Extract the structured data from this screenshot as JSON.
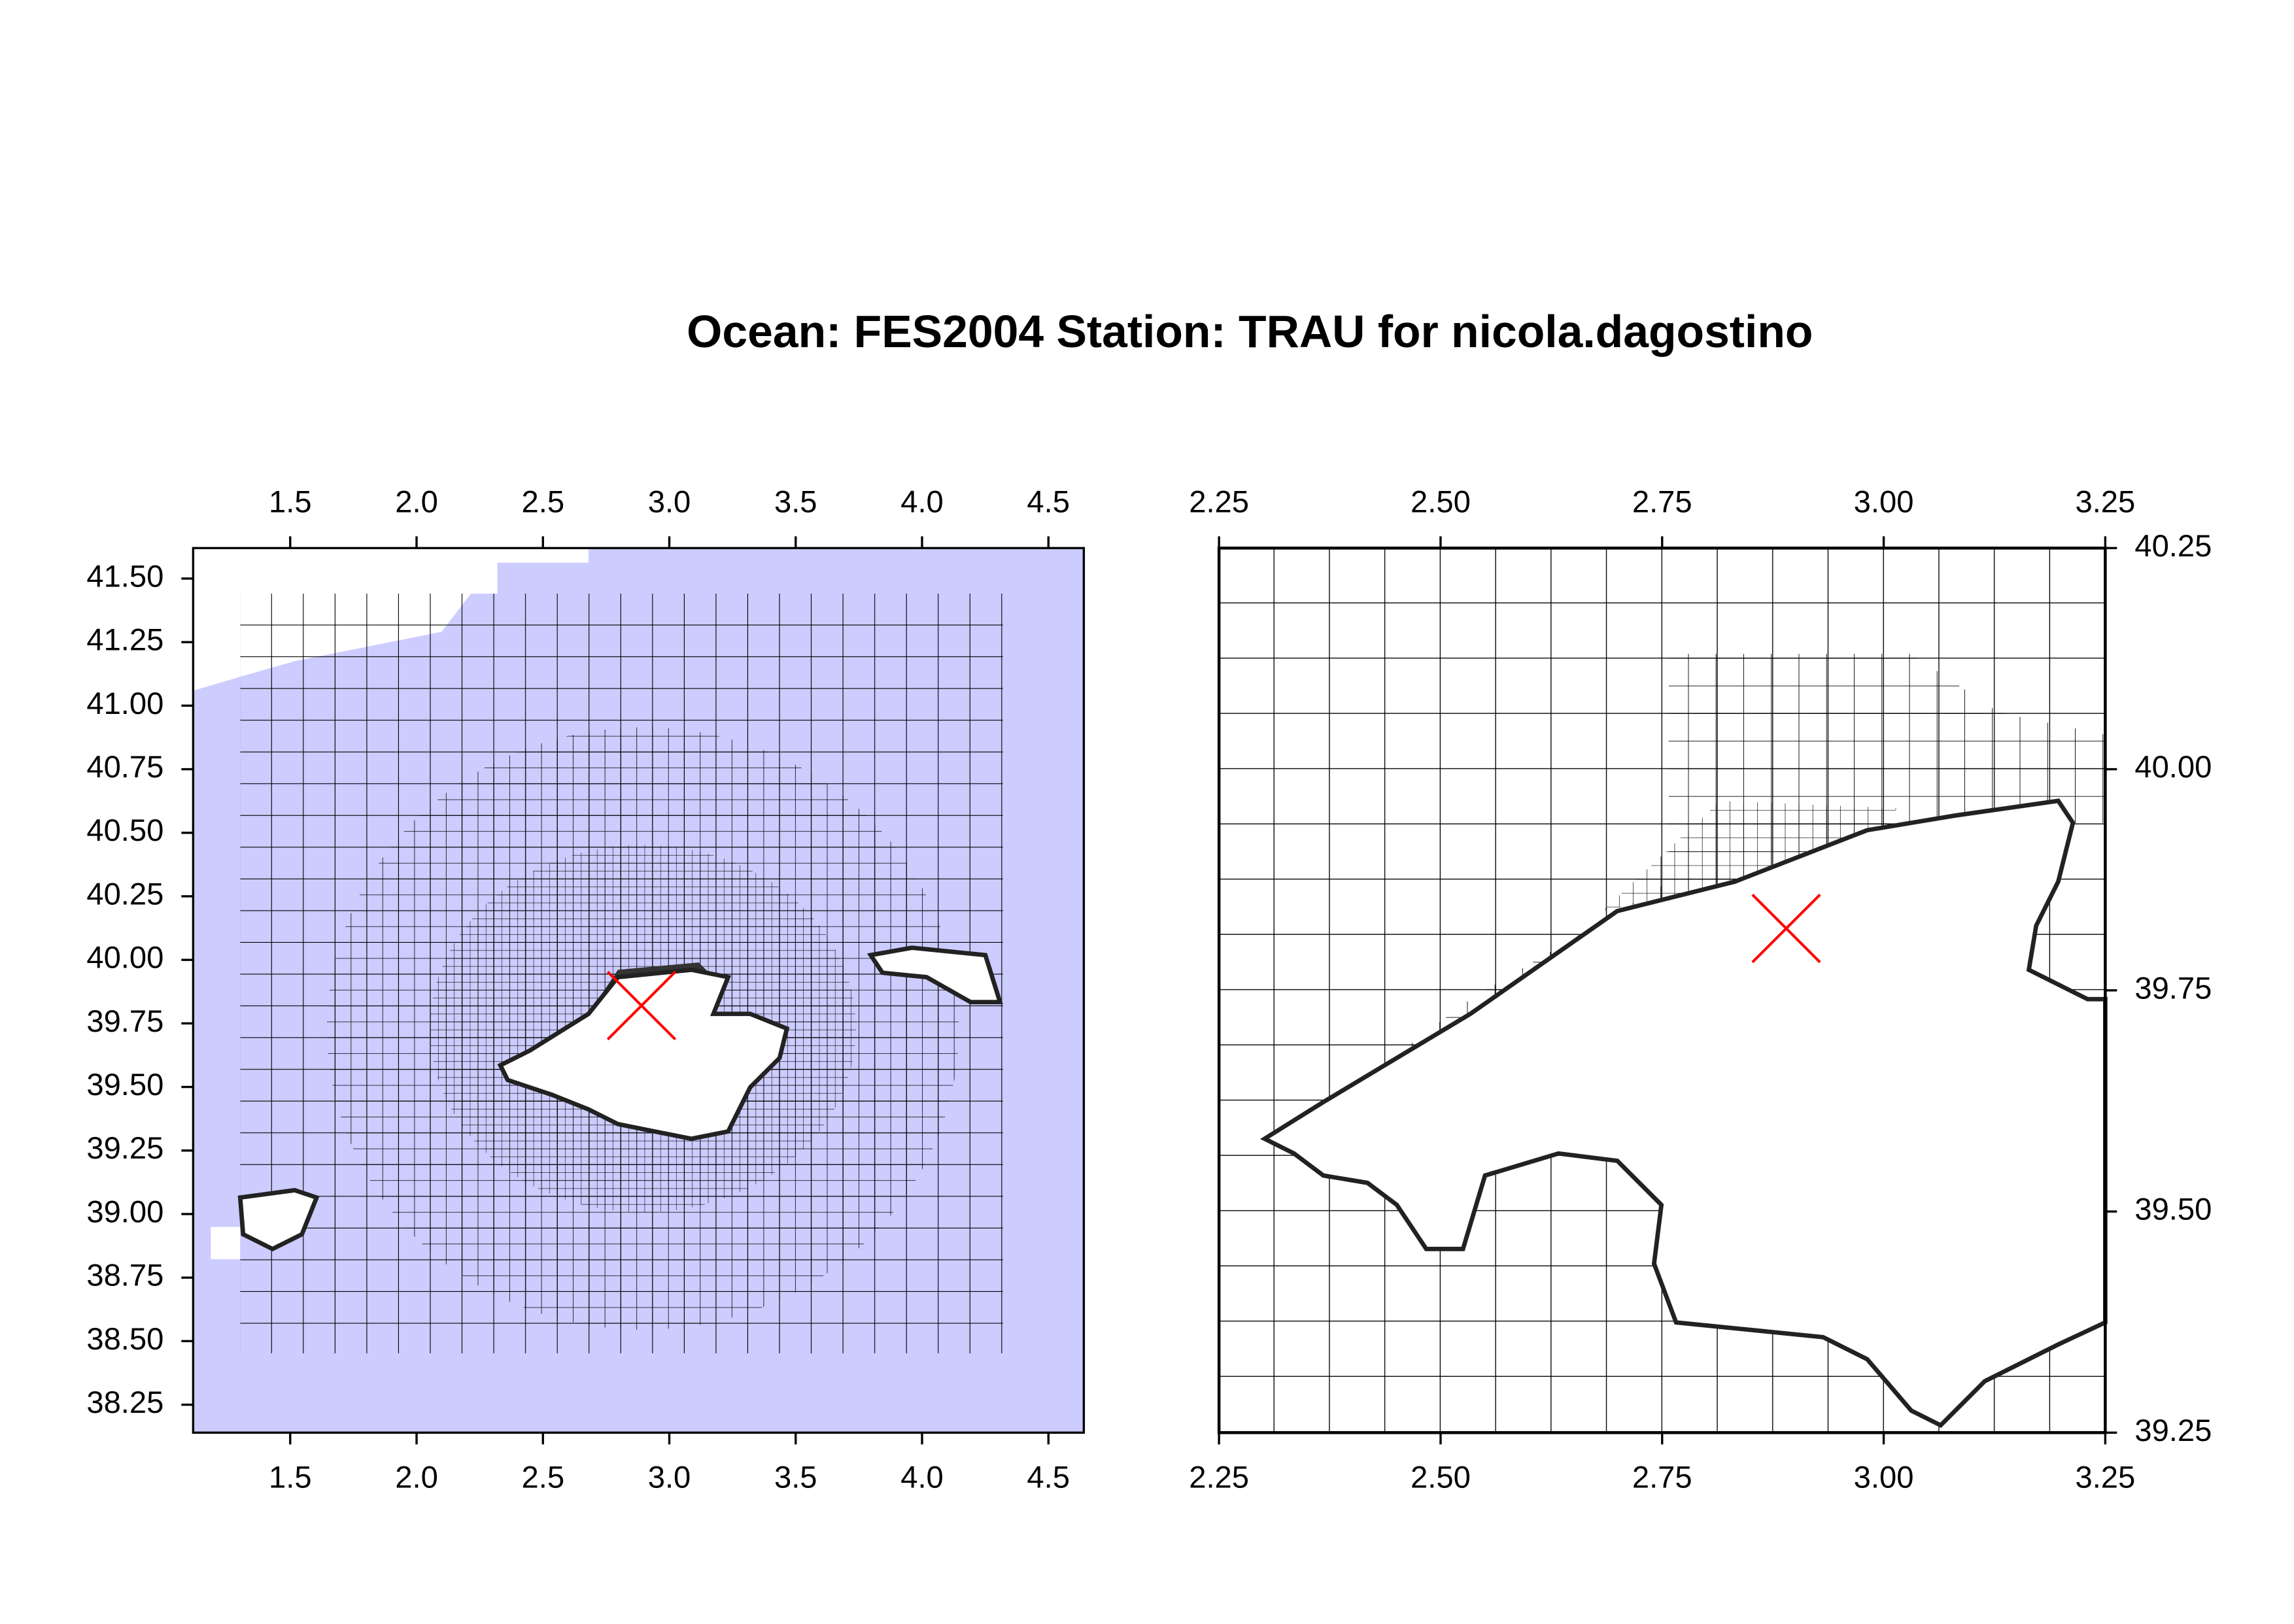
{
  "title": "Ocean: FES2004  Station: TRAU  for nicola.dagostino",
  "station_marker": {
    "lon": 2.89,
    "lat": 39.82,
    "color": "#ff0000"
  },
  "maps": [
    {
      "xlim": [
        1.116,
        4.64
      ],
      "ylim": [
        38.14,
        41.62
      ],
      "xticks": [
        1.5,
        {
          "value": 2.0,
          "label": "2.0"
        },
        2.5,
        {
          "value": 3.0,
          "label": "3.0"
        },
        3.5,
        {
          "value": 4.0,
          "label": "4.0"
        },
        4.5
      ],
      "yticks": [
        {
          "value": 38.25,
          "label": "38.25"
        },
        {
          "value": 38.5,
          "label": "38.50"
        },
        {
          "value": 38.75,
          "label": "38.75"
        },
        {
          "value": 39.0,
          "label": "39.00"
        },
        {
          "value": 39.25,
          "label": "39.25"
        },
        {
          "value": 39.5,
          "label": "39.50"
        },
        {
          "value": 39.75,
          "label": "39.75"
        },
        {
          "value": 40.0,
          "label": "40.00"
        },
        {
          "value": 40.25,
          "label": "40.25"
        },
        {
          "value": 40.5,
          "label": "40.50"
        },
        {
          "value": 40.75,
          "label": "40.75"
        },
        {
          "value": 41.0,
          "label": "41.00"
        },
        {
          "value": 41.25,
          "label": "41.25"
        },
        {
          "value": 41.5,
          "label": "41.50"
        }
      ],
      "yaxis_side": "left"
    },
    {
      "xlim": [
        2.25,
        3.25
      ],
      "ylim": [
        39.25,
        40.25
      ],
      "xticks": [
        2.25,
        {
          "value": 2.5,
          "label": "2.50"
        },
        2.75,
        {
          "value": 3.0,
          "label": "3.00"
        },
        3.25
      ],
      "yticks": [
        39.25,
        {
          "value": 39.5,
          "label": "39.50"
        },
        39.75,
        {
          "value": 40.0,
          "label": "40.00"
        },
        40.25
      ],
      "yaxis_side": "right"
    }
  ]
}
